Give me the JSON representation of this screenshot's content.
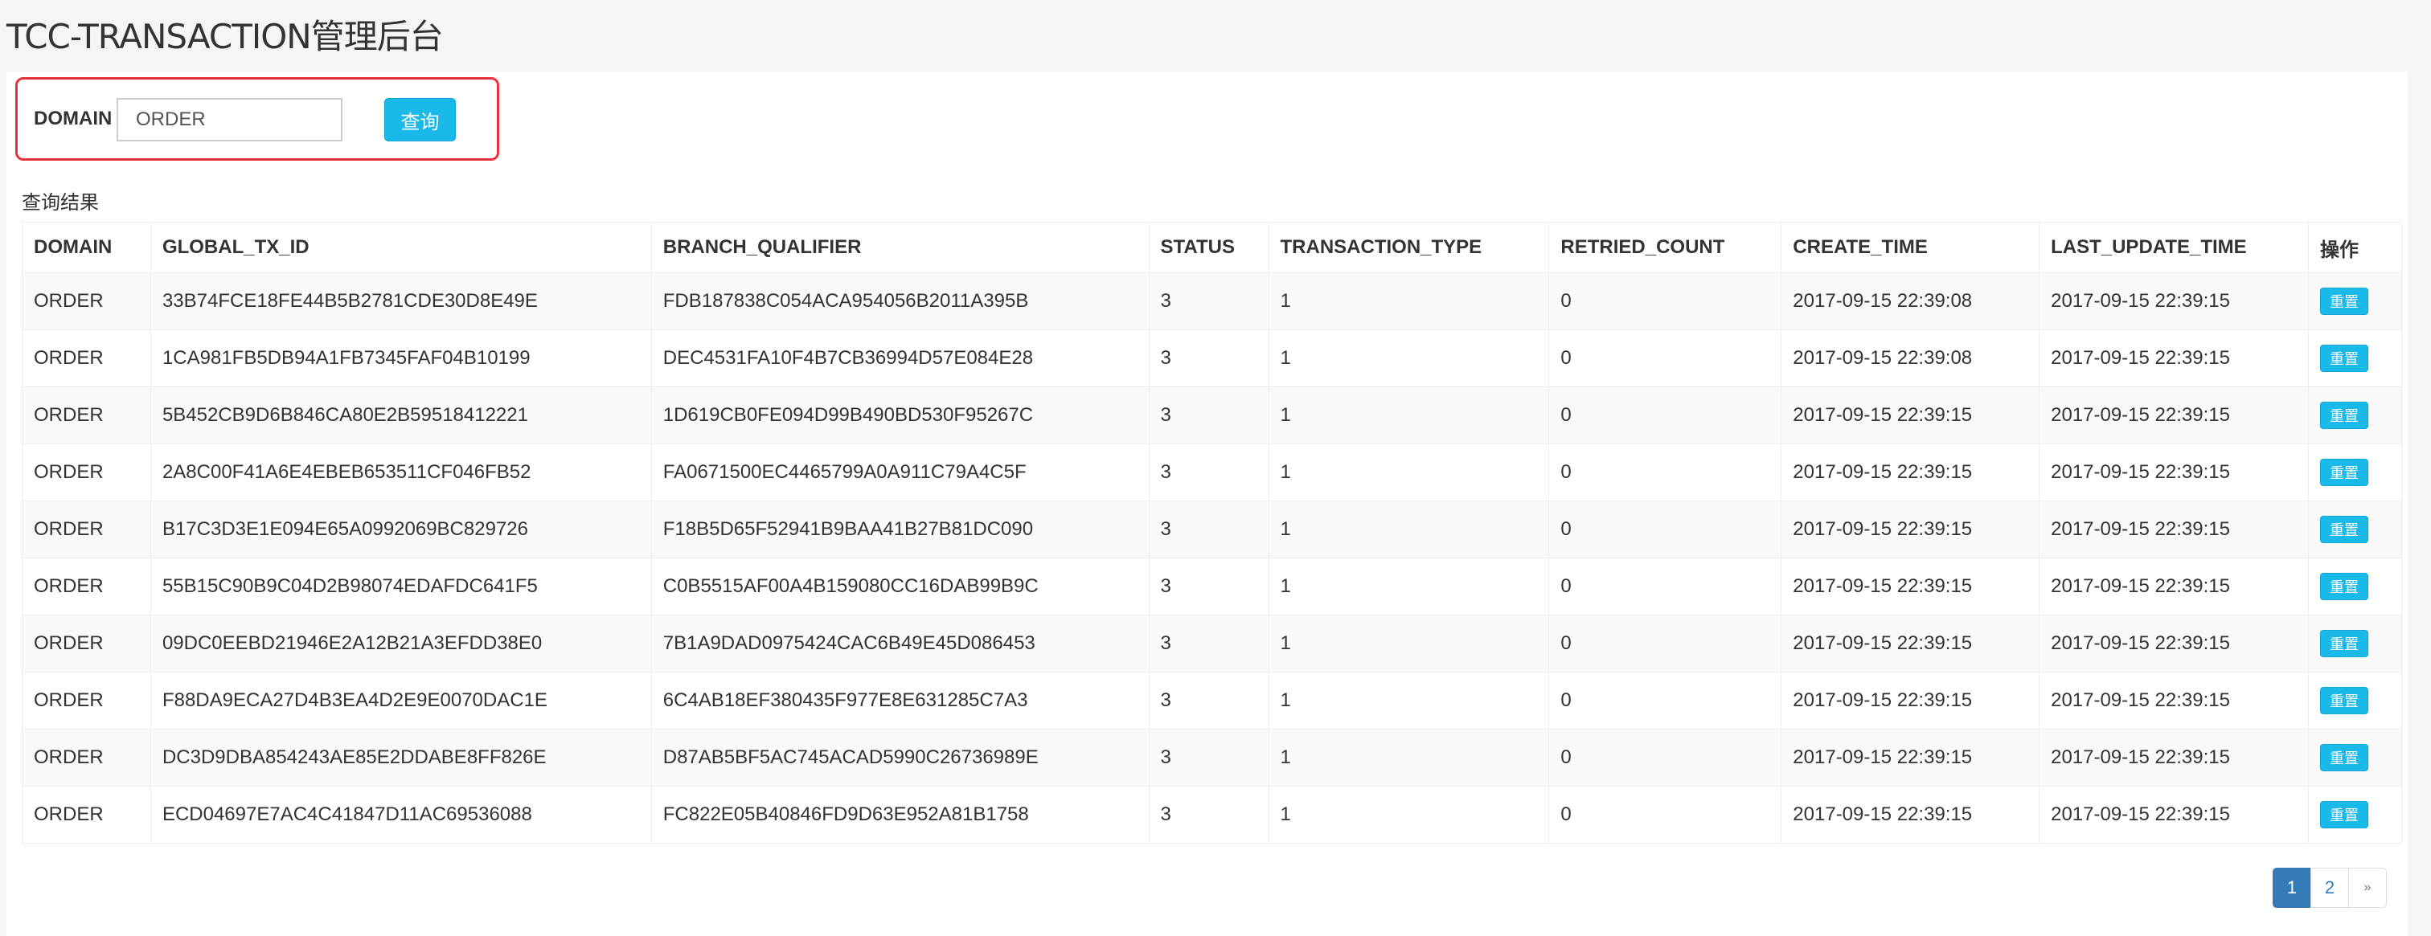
{
  "header": {
    "title": "TCC-TRANSACTION管理后台"
  },
  "search": {
    "label": "DOMAIN",
    "value": "ORDER",
    "button": "查询"
  },
  "results": {
    "label": "查询结果",
    "columns": [
      "DOMAIN",
      "GLOBAL_TX_ID",
      "BRANCH_QUALIFIER",
      "STATUS",
      "TRANSACTION_TYPE",
      "RETRIED_COUNT",
      "CREATE_TIME",
      "LAST_UPDATE_TIME",
      "操作"
    ],
    "action_label": "重置",
    "rows": [
      [
        "ORDER",
        "33B74FCE18FE44B5B2781CDE30D8E49E",
        "FDB187838C054ACA954056B2011A395B",
        "3",
        "1",
        "0",
        "2017-09-15 22:39:08",
        "2017-09-15 22:39:15"
      ],
      [
        "ORDER",
        "1CA981FB5DB94A1FB7345FAF04B10199",
        "DEC4531FA10F4B7CB36994D57E084E28",
        "3",
        "1",
        "0",
        "2017-09-15 22:39:08",
        "2017-09-15 22:39:15"
      ],
      [
        "ORDER",
        "5B452CB9D6B846CA80E2B59518412221",
        "1D619CB0FE094D99B490BD530F95267C",
        "3",
        "1",
        "0",
        "2017-09-15 22:39:15",
        "2017-09-15 22:39:15"
      ],
      [
        "ORDER",
        "2A8C00F41A6E4EBEB653511CF046FB52",
        "FA0671500EC4465799A0A911C79A4C5F",
        "3",
        "1",
        "0",
        "2017-09-15 22:39:15",
        "2017-09-15 22:39:15"
      ],
      [
        "ORDER",
        "B17C3D3E1E094E65A0992069BC829726",
        "F18B5D65F52941B9BAA41B27B81DC090",
        "3",
        "1",
        "0",
        "2017-09-15 22:39:15",
        "2017-09-15 22:39:15"
      ],
      [
        "ORDER",
        "55B15C90B9C04D2B98074EDAFDC641F5",
        "C0B5515AF00A4B159080CC16DAB99B9C",
        "3",
        "1",
        "0",
        "2017-09-15 22:39:15",
        "2017-09-15 22:39:15"
      ],
      [
        "ORDER",
        "09DC0EEBD21946E2A12B21A3EFDD38E0",
        "7B1A9DAD0975424CAC6B49E45D086453",
        "3",
        "1",
        "0",
        "2017-09-15 22:39:15",
        "2017-09-15 22:39:15"
      ],
      [
        "ORDER",
        "F88DA9ECA27D4B3EA4D2E9E0070DAC1E",
        "6C4AB18EF380435F977E8E631285C7A3",
        "3",
        "1",
        "0",
        "2017-09-15 22:39:15",
        "2017-09-15 22:39:15"
      ],
      [
        "ORDER",
        "DC3D9DBA854243AE85E2DDABE8FF826E",
        "D87AB5BF5AC745ACAD5990C26736989E",
        "3",
        "1",
        "0",
        "2017-09-15 22:39:15",
        "2017-09-15 22:39:15"
      ],
      [
        "ORDER",
        "ECD04697E7AC4C41847D11AC69536088",
        "FC822E05B40846FD9D63E952A81B1758",
        "3",
        "1",
        "0",
        "2017-09-15 22:39:15",
        "2017-09-15 22:39:15"
      ]
    ]
  },
  "pagination": {
    "pages": [
      "1",
      "2"
    ],
    "current": "1",
    "next": "»"
  },
  "colors": {
    "accent": "#19b9ea",
    "highlight": "#e8323c",
    "page_active": "#337ab7"
  }
}
